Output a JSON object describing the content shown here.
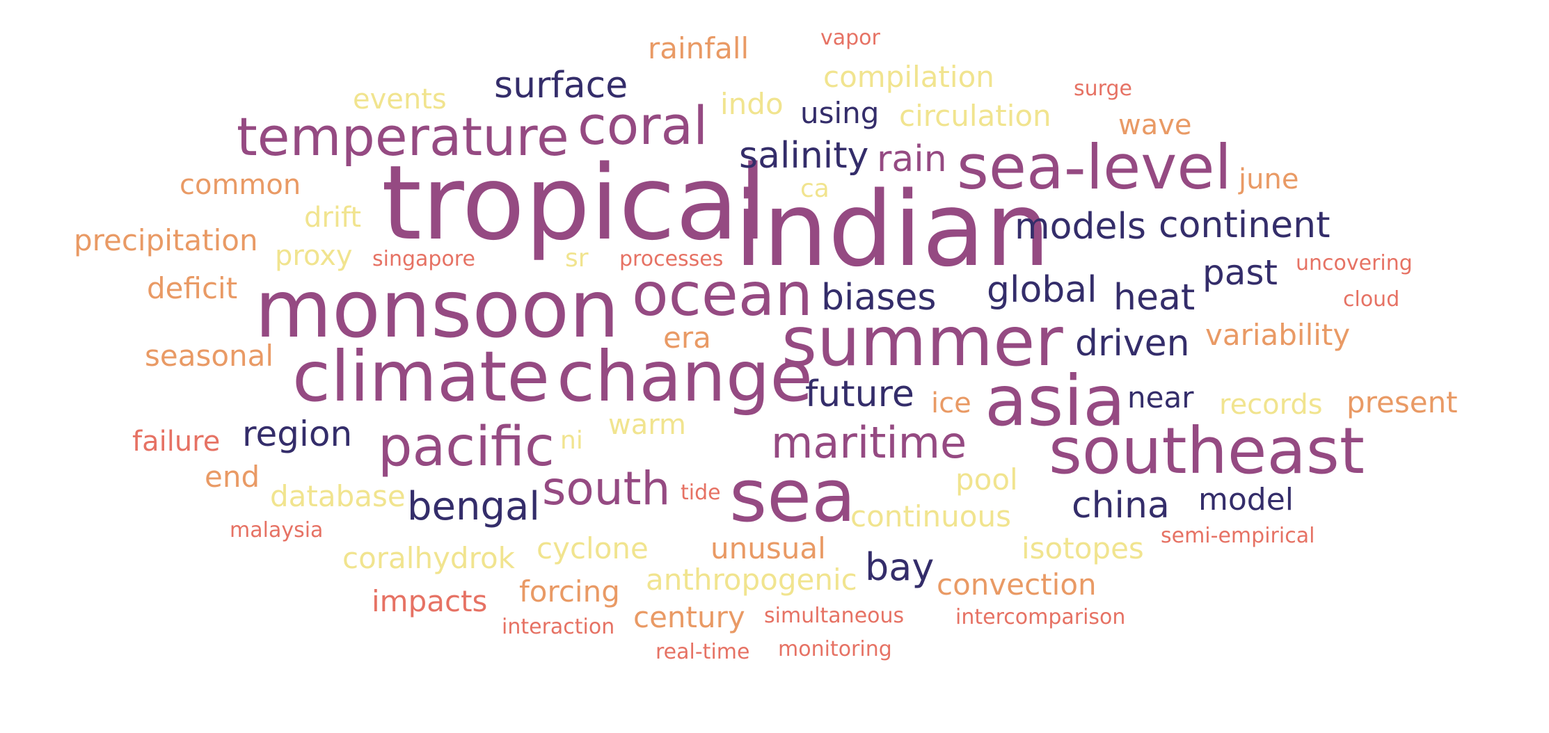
{
  "palette": {
    "c1": "#954a82",
    "c2": "#342d6a",
    "c3": "#e99a65",
    "c4": "#f1e48f",
    "c5": "#e67264"
  },
  "words": [
    {
      "text": "tropical",
      "color": "c1"
    },
    {
      "text": "indian",
      "color": "c1"
    },
    {
      "text": "monsoon",
      "color": "c1"
    },
    {
      "text": "climate",
      "color": "c1"
    },
    {
      "text": "change",
      "color": "c1"
    },
    {
      "text": "summer",
      "color": "c1"
    },
    {
      "text": "asia",
      "color": "c1"
    },
    {
      "text": "southeast",
      "color": "c1"
    },
    {
      "text": "sea",
      "color": "c1"
    },
    {
      "text": "ocean",
      "color": "c1"
    },
    {
      "text": "sea-level",
      "color": "c1"
    },
    {
      "text": "temperature",
      "color": "c1"
    },
    {
      "text": "coral",
      "color": "c1"
    },
    {
      "text": "pacific",
      "color": "c1"
    },
    {
      "text": "maritime",
      "color": "c1"
    },
    {
      "text": "south",
      "color": "c1"
    },
    {
      "text": "rain",
      "color": "c1"
    },
    {
      "text": "surface",
      "color": "c2"
    },
    {
      "text": "using",
      "color": "c2"
    },
    {
      "text": "salinity",
      "color": "c2"
    },
    {
      "text": "models",
      "color": "c2"
    },
    {
      "text": "continent",
      "color": "c2"
    },
    {
      "text": "biases",
      "color": "c2"
    },
    {
      "text": "global",
      "color": "c2"
    },
    {
      "text": "heat",
      "color": "c2"
    },
    {
      "text": "past",
      "color": "c2"
    },
    {
      "text": "driven",
      "color": "c2"
    },
    {
      "text": "future",
      "color": "c2"
    },
    {
      "text": "near",
      "color": "c2"
    },
    {
      "text": "region",
      "color": "c2"
    },
    {
      "text": "bengal",
      "color": "c2"
    },
    {
      "text": "china",
      "color": "c2"
    },
    {
      "text": "model",
      "color": "c2"
    },
    {
      "text": "bay",
      "color": "c2"
    },
    {
      "text": "rainfall",
      "color": "c3"
    },
    {
      "text": "wave",
      "color": "c3"
    },
    {
      "text": "june",
      "color": "c3"
    },
    {
      "text": "common",
      "color": "c3"
    },
    {
      "text": "precipitation",
      "color": "c3"
    },
    {
      "text": "deficit",
      "color": "c3"
    },
    {
      "text": "seasonal",
      "color": "c3"
    },
    {
      "text": "era",
      "color": "c3"
    },
    {
      "text": "variability",
      "color": "c3"
    },
    {
      "text": "ice",
      "color": "c3"
    },
    {
      "text": "present",
      "color": "c3"
    },
    {
      "text": "end",
      "color": "c3"
    },
    {
      "text": "unusual",
      "color": "c3"
    },
    {
      "text": "convection",
      "color": "c3"
    },
    {
      "text": "forcing",
      "color": "c3"
    },
    {
      "text": "century",
      "color": "c3"
    },
    {
      "text": "compilation",
      "color": "c4"
    },
    {
      "text": "events",
      "color": "c4"
    },
    {
      "text": "indo",
      "color": "c4"
    },
    {
      "text": "circulation",
      "color": "c4"
    },
    {
      "text": "ca",
      "color": "c4"
    },
    {
      "text": "drift",
      "color": "c4"
    },
    {
      "text": "proxy",
      "color": "c4"
    },
    {
      "text": "sr",
      "color": "c4"
    },
    {
      "text": "records",
      "color": "c4"
    },
    {
      "text": "warm",
      "color": "c4"
    },
    {
      "text": "ni",
      "color": "c4"
    },
    {
      "text": "pool",
      "color": "c4"
    },
    {
      "text": "database",
      "color": "c4"
    },
    {
      "text": "continuous",
      "color": "c4"
    },
    {
      "text": "cyclone",
      "color": "c4"
    },
    {
      "text": "isotopes",
      "color": "c4"
    },
    {
      "text": "coralhydrok",
      "color": "c4"
    },
    {
      "text": "anthropogenic",
      "color": "c4"
    },
    {
      "text": "vapor",
      "color": "c5"
    },
    {
      "text": "surge",
      "color": "c5"
    },
    {
      "text": "singapore",
      "color": "c5"
    },
    {
      "text": "processes",
      "color": "c5"
    },
    {
      "text": "uncovering",
      "color": "c5"
    },
    {
      "text": "cloud",
      "color": "c5"
    },
    {
      "text": "failure",
      "color": "c5"
    },
    {
      "text": "tide",
      "color": "c5"
    },
    {
      "text": "malaysia",
      "color": "c5"
    },
    {
      "text": "semi-empirical",
      "color": "c5"
    },
    {
      "text": "impacts",
      "color": "c5"
    },
    {
      "text": "interaction",
      "color": "c5"
    },
    {
      "text": "simultaneous",
      "color": "c5"
    },
    {
      "text": "intercomparison",
      "color": "c5"
    },
    {
      "text": "real-time",
      "color": "c5"
    },
    {
      "text": "monitoring",
      "color": "c5"
    }
  ]
}
